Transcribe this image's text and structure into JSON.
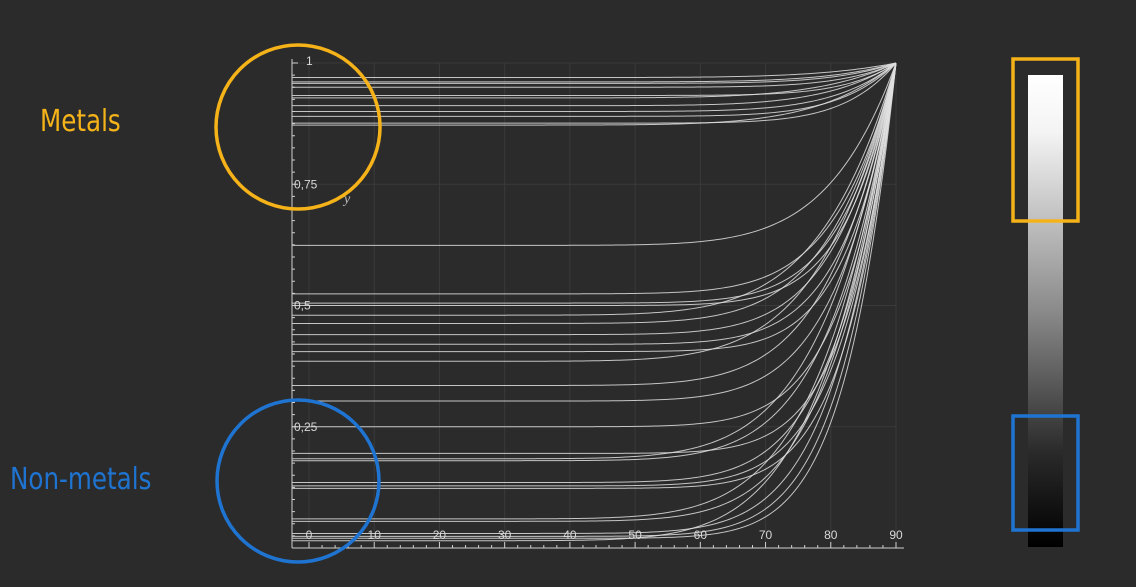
{
  "labels": {
    "metals": "Metals",
    "non_metals": "Non-metals"
  },
  "colors": {
    "background": "#2b2b2b",
    "curves": "#e0e0e0",
    "axes": "#cfcfcf",
    "grid": "#3a3a3a",
    "metals": "#f5b319",
    "non_metals": "#1f74d1"
  },
  "chart_data": {
    "type": "line",
    "xlabel": "",
    "ylabel": "y",
    "xlim": [
      0,
      90
    ],
    "ylim": [
      0,
      1
    ],
    "x_ticks": [
      "0",
      "10",
      "20",
      "30",
      "40",
      "50",
      "60",
      "70",
      "80",
      "90"
    ],
    "y_ticks": [
      {
        "value": 1,
        "label": "1"
      },
      {
        "value": 0.75,
        "label": "0,75"
      },
      {
        "value": 0.5,
        "label": "0,5"
      },
      {
        "value": 0.25,
        "label": "0,25"
      }
    ],
    "grid": true,
    "curve_endpoint": [
      90,
      1
    ],
    "series": [
      {
        "f0": 0.97
      },
      {
        "f0": 0.961
      },
      {
        "f0": 0.958
      },
      {
        "f0": 0.95
      },
      {
        "f0": 0.933
      },
      {
        "f0": 0.928
      },
      {
        "f0": 0.912
      },
      {
        "f0": 0.9
      },
      {
        "f0": 0.89
      },
      {
        "f0": 0.876
      },
      {
        "f0": 0.872
      },
      {
        "f0": 0.624
      },
      {
        "f0": 0.524
      },
      {
        "f0": 0.505
      },
      {
        "f0": 0.5
      },
      {
        "f0": 0.48
      },
      {
        "f0": 0.463
      },
      {
        "f0": 0.44
      },
      {
        "f0": 0.42
      },
      {
        "f0": 0.405
      },
      {
        "f0": 0.385
      },
      {
        "f0": 0.335
      },
      {
        "f0": 0.303
      },
      {
        "f0": 0.25
      },
      {
        "f0": 0.195
      },
      {
        "f0": 0.184
      },
      {
        "f0": 0.18
      },
      {
        "f0": 0.135
      },
      {
        "f0": 0.128
      },
      {
        "f0": 0.123
      },
      {
        "f0": 0.06
      },
      {
        "f0": 0.055
      },
      {
        "f0": 0.03
      },
      {
        "f0": 0.024
      },
      {
        "f0": 0.02
      },
      {
        "f0": 0.015
      }
    ]
  },
  "gradient_bar": {
    "top_color": "#ffffff",
    "bottom_color": "#000000",
    "metals_range": [
      0.7,
      1.0
    ],
    "non_metals_range": [
      0.0,
      0.2
    ]
  }
}
